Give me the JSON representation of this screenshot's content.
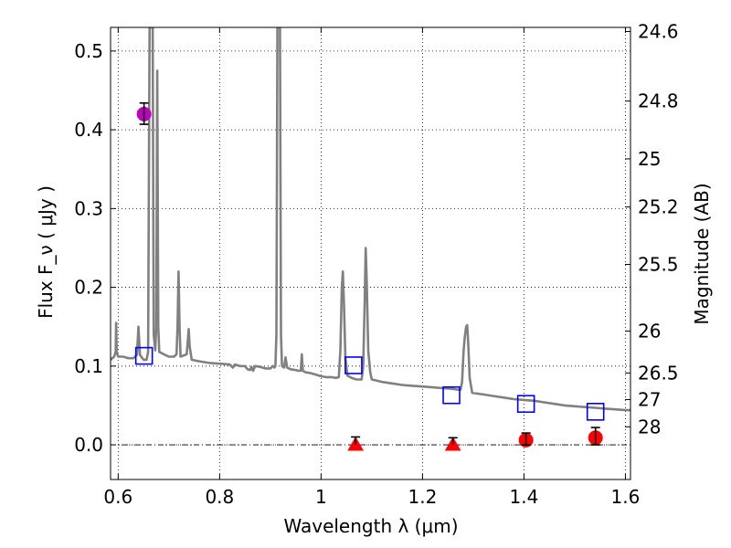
{
  "chart_data": {
    "type": "line",
    "xlabel": "Wavelength  λ (μm)",
    "ylabel": "Flux  F_ν  ( μJy )",
    "ylabel_right": "Magnitude (AB)",
    "xlim": [
      0.585,
      1.61
    ],
    "ylim": [
      -0.044,
      0.53
    ],
    "grid": true,
    "x_ticks": [
      {
        "value": 0.6,
        "label": "0.6"
      },
      {
        "value": 0.8,
        "label": "0.8"
      },
      {
        "value": 1.0,
        "label": "1"
      },
      {
        "value": 1.2,
        "label": "1.2"
      },
      {
        "value": 1.4,
        "label": "1.4"
      },
      {
        "value": 1.6,
        "label": "1.6"
      }
    ],
    "y_ticks": [
      {
        "value": 0.0,
        "label": "0.0"
      },
      {
        "value": 0.1,
        "label": "0.1"
      },
      {
        "value": 0.2,
        "label": "0.2"
      },
      {
        "value": 0.3,
        "label": "0.3"
      },
      {
        "value": 0.4,
        "label": "0.4"
      },
      {
        "value": 0.5,
        "label": "0.5"
      }
    ],
    "right_ticks": [
      {
        "flux": 0.5248,
        "label": "24.6"
      },
      {
        "flux": 0.4365,
        "label": "24.8"
      },
      {
        "flux": 0.3631,
        "label": "25"
      },
      {
        "flux": 0.302,
        "label": "25.2"
      },
      {
        "flux": 0.2291,
        "label": "25.5"
      },
      {
        "flux": 0.1445,
        "label": "26"
      },
      {
        "flux": 0.0912,
        "label": "26.5"
      },
      {
        "flux": 0.0575,
        "label": "27"
      },
      {
        "flux": 0.0229,
        "label": "28"
      }
    ],
    "colors": {
      "model": "#808080",
      "open_squares": "#0000ff",
      "red_points": "#ff0000",
      "magenta_point": "#bf00bf",
      "errorbar": "#000000",
      "grid": "#000000"
    },
    "series": [
      {
        "kind": "model_spectrum",
        "points": [
          [
            0.585,
            0.108
          ],
          [
            0.592,
            0.112
          ],
          [
            0.595,
            0.118
          ],
          [
            0.596,
            0.155
          ],
          [
            0.597,
            0.118
          ],
          [
            0.6,
            0.112
          ],
          [
            0.61,
            0.112
          ],
          [
            0.62,
            0.11
          ],
          [
            0.63,
            0.11
          ],
          [
            0.637,
            0.114
          ],
          [
            0.64,
            0.15
          ],
          [
            0.643,
            0.114
          ],
          [
            0.65,
            0.108
          ],
          [
            0.656,
            0.108
          ],
          [
            0.659,
            0.118
          ],
          [
            0.662,
            0.53
          ],
          [
            0.663,
            0.53
          ],
          [
            0.665,
            0.53
          ],
          [
            0.668,
            0.53
          ],
          [
            0.67,
            0.14
          ],
          [
            0.673,
            0.12
          ],
          [
            0.675,
            0.15
          ],
          [
            0.677,
            0.475
          ],
          [
            0.679,
            0.15
          ],
          [
            0.681,
            0.118
          ],
          [
            0.69,
            0.115
          ],
          [
            0.7,
            0.112
          ],
          [
            0.71,
            0.112
          ],
          [
            0.715,
            0.115
          ],
          [
            0.717,
            0.15
          ],
          [
            0.719,
            0.22
          ],
          [
            0.721,
            0.15
          ],
          [
            0.723,
            0.112
          ],
          [
            0.735,
            0.115
          ],
          [
            0.737,
            0.13
          ],
          [
            0.739,
            0.147
          ],
          [
            0.741,
            0.125
          ],
          [
            0.745,
            0.108
          ],
          [
            0.76,
            0.106
          ],
          [
            0.78,
            0.104
          ],
          [
            0.8,
            0.103
          ],
          [
            0.82,
            0.102
          ],
          [
            0.823,
            0.1
          ],
          [
            0.826,
            0.098
          ],
          [
            0.83,
            0.102
          ],
          [
            0.84,
            0.1
          ],
          [
            0.85,
            0.1
          ],
          [
            0.855,
            0.096
          ],
          [
            0.86,
            0.095
          ],
          [
            0.863,
            0.099
          ],
          [
            0.866,
            0.094
          ],
          [
            0.87,
            0.1
          ],
          [
            0.88,
            0.099
          ],
          [
            0.89,
            0.097
          ],
          [
            0.9,
            0.097
          ],
          [
            0.905,
            0.1
          ],
          [
            0.908,
            0.098
          ],
          [
            0.91,
            0.1
          ],
          [
            0.912,
            0.14
          ],
          [
            0.914,
            0.53
          ],
          [
            0.919,
            0.53
          ],
          [
            0.921,
            0.14
          ],
          [
            0.923,
            0.1
          ],
          [
            0.927,
            0.098
          ],
          [
            0.93,
            0.111
          ],
          [
            0.933,
            0.098
          ],
          [
            0.94,
            0.096
          ],
          [
            0.95,
            0.095
          ],
          [
            0.955,
            0.094
          ],
          [
            0.96,
            0.094
          ],
          [
            0.962,
            0.115
          ],
          [
            0.964,
            0.094
          ],
          [
            0.97,
            0.092
          ],
          [
            0.98,
            0.091
          ],
          [
            0.99,
            0.089
          ],
          [
            1.0,
            0.087
          ],
          [
            1.01,
            0.086
          ],
          [
            1.02,
            0.086
          ],
          [
            1.03,
            0.085
          ],
          [
            1.035,
            0.086
          ],
          [
            1.038,
            0.12
          ],
          [
            1.041,
            0.2
          ],
          [
            1.043,
            0.22
          ],
          [
            1.045,
            0.18
          ],
          [
            1.048,
            0.11
          ],
          [
            1.052,
            0.088
          ],
          [
            1.06,
            0.085
          ],
          [
            1.07,
            0.083
          ],
          [
            1.08,
            0.083
          ],
          [
            1.083,
            0.1
          ],
          [
            1.086,
            0.18
          ],
          [
            1.088,
            0.25
          ],
          [
            1.09,
            0.21
          ],
          [
            1.093,
            0.12
          ],
          [
            1.097,
            0.092
          ],
          [
            1.1,
            0.083
          ],
          [
            1.12,
            0.08
          ],
          [
            1.14,
            0.078
          ],
          [
            1.16,
            0.076
          ],
          [
            1.18,
            0.075
          ],
          [
            1.2,
            0.074
          ],
          [
            1.22,
            0.073
          ],
          [
            1.24,
            0.072
          ],
          [
            1.26,
            0.071
          ],
          [
            1.27,
            0.07
          ],
          [
            1.275,
            0.07
          ],
          [
            1.278,
            0.08
          ],
          [
            1.281,
            0.12
          ],
          [
            1.283,
            0.135
          ],
          [
            1.286,
            0.15
          ],
          [
            1.288,
            0.152
          ],
          [
            1.29,
            0.13
          ],
          [
            1.293,
            0.085
          ],
          [
            1.298,
            0.066
          ],
          [
            1.32,
            0.064
          ],
          [
            1.34,
            0.062
          ],
          [
            1.36,
            0.06
          ],
          [
            1.38,
            0.058
          ],
          [
            1.4,
            0.057
          ],
          [
            1.42,
            0.056
          ],
          [
            1.44,
            0.054
          ],
          [
            1.46,
            0.052
          ],
          [
            1.48,
            0.05
          ],
          [
            1.5,
            0.049
          ],
          [
            1.52,
            0.048
          ],
          [
            1.54,
            0.047
          ],
          [
            1.56,
            0.046
          ],
          [
            1.58,
            0.045
          ],
          [
            1.6,
            0.044
          ],
          [
            1.61,
            0.044
          ]
        ]
      },
      {
        "kind": "open_squares",
        "points": [
          {
            "x": 0.651,
            "y": 0.113
          },
          {
            "x": 1.064,
            "y": 0.101
          },
          {
            "x": 1.257,
            "y": 0.063
          },
          {
            "x": 1.404,
            "y": 0.052
          },
          {
            "x": 1.541,
            "y": 0.042
          }
        ]
      },
      {
        "kind": "red_triangles",
        "points": [
          {
            "x": 1.068,
            "y": 0.0,
            "err_lo": 0.0,
            "err_hi": 0.01
          },
          {
            "x": 1.26,
            "y": 0.0,
            "err_lo": 0.0,
            "err_hi": 0.009
          }
        ]
      },
      {
        "kind": "red_circles",
        "points": [
          {
            "x": 1.404,
            "y": 0.006,
            "err_lo": 0.006,
            "err_hi": 0.009
          },
          {
            "x": 1.541,
            "y": 0.009,
            "err_lo": 0.009,
            "err_hi": 0.013
          }
        ]
      },
      {
        "kind": "magenta_circle",
        "points": [
          {
            "x": 0.651,
            "y": 0.42,
            "err_lo": 0.013,
            "err_hi": 0.014
          }
        ]
      }
    ]
  }
}
